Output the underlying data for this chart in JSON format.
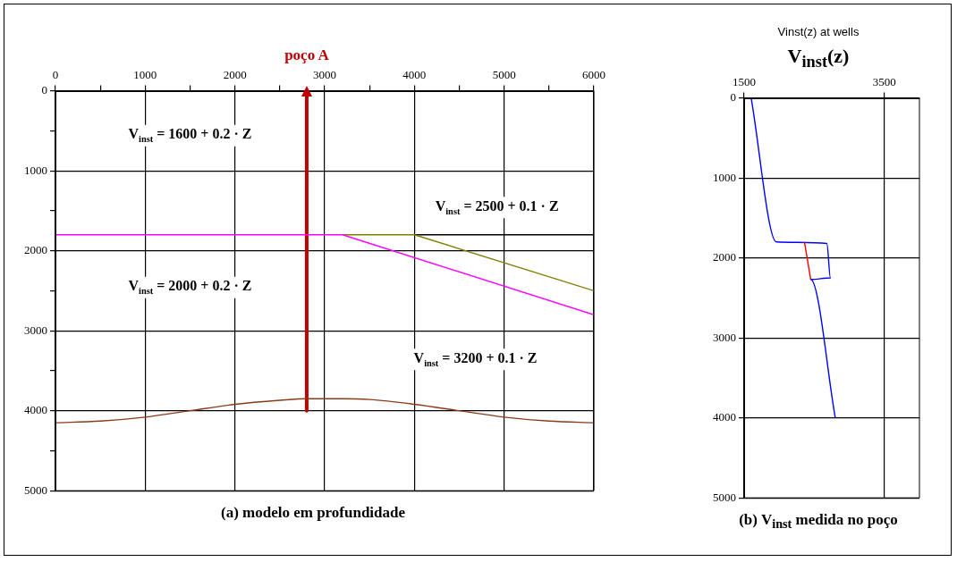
{
  "chart_data": [
    {
      "type": "line",
      "marker": "none",
      "grid": true,
      "xlim": [
        0,
        6000
      ],
      "xticks": [
        0,
        {
          "value": 500,
          "label": null
        },
        1000,
        {
          "value": 1500,
          "label": null
        },
        2000,
        {
          "value": 2500,
          "label": null
        },
        3000,
        {
          "value": 3500,
          "label": null
        },
        4000,
        {
          "value": 4500,
          "label": null
        },
        5000,
        {
          "value": 5500,
          "label": null
        },
        6000
      ],
      "ylim": [
        5000,
        0
      ],
      "yticks": [
        0,
        {
          "value": 500,
          "label": null
        },
        1000,
        {
          "value": 1500,
          "label": null
        },
        2000,
        {
          "value": 2500,
          "label": null
        },
        3000,
        {
          "value": 3500,
          "label": null
        },
        4000,
        {
          "value": 4500,
          "label": null
        },
        5000
      ],
      "series": [
        {
          "color": "#ff00ff",
          "x": [
            0,
            3200,
            6000
          ],
          "values": [
            1800,
            1800,
            2800
          ]
        },
        {
          "color": "#808000",
          "x": [
            3200,
            4000,
            6000
          ],
          "values": [
            1800,
            1800,
            2500
          ]
        },
        {
          "color": "#000000",
          "x": [
            4000,
            6000
          ],
          "values": [
            1800,
            1800
          ]
        },
        {
          "color": "#8b3a1a",
          "x": [
            0,
            500,
            1000,
            1500,
            2000,
            2500,
            2800,
            3200,
            3500,
            4000,
            4500,
            5000,
            5500,
            6000
          ],
          "values": [
            4150,
            4130,
            4080,
            4000,
            3920,
            3870,
            3850,
            3850,
            3860,
            3920,
            4000,
            4080,
            4130,
            4150
          ]
        },
        {
          "name": "poço A",
          "color": "#c00000",
          "x": [
            2800,
            2800
          ],
          "values": [
            0,
            4000
          ]
        }
      ],
      "annotations": [
        "V$_{inst}$ = 1600 + 0.2 · Z",
        "V$_{inst}$ = 2000 + 0.2 · Z",
        "V$_{inst}$ = 2500 + 0.1 · Z",
        "V$_{inst}$ = 3200 + 0.1 · Z",
        "(a) modelo em profundidade"
      ]
    },
    {
      "type": "line",
      "marker": "none",
      "grid": true,
      "title": "Vinst(z) at wells",
      "xlabel": "V$_{inst}$(z)",
      "xlim": [
        1500,
        4000
      ],
      "xticks": [
        1500,
        3500
      ],
      "ylim": [
        5000,
        0
      ],
      "yticks": [
        0,
        1000,
        2000,
        3000,
        4000,
        5000
      ],
      "series": [
        {
          "color": "#ff0000",
          "x": [
            2360,
            2450
          ],
          "values": [
            1800,
            2270
          ]
        },
        {
          "color": "#0000ff",
          "x": [
            1600,
            1960,
            2680,
            2730,
            2450,
            2800
          ],
          "values": [
            0,
            1800,
            1820,
            2250,
            2270,
            4000
          ]
        }
      ],
      "annotations": [
        "(b) V$_{inst}$ medida no poço"
      ]
    }
  ]
}
